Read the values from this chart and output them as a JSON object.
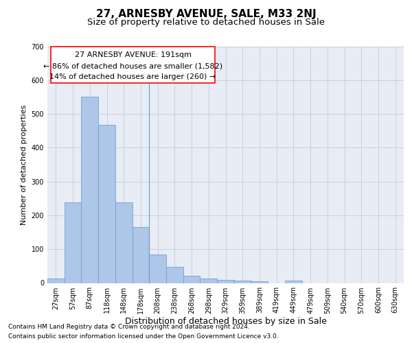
{
  "title": "27, ARNESBY AVENUE, SALE, M33 2NJ",
  "subtitle": "Size of property relative to detached houses in Sale",
  "xlabel": "Distribution of detached houses by size in Sale",
  "ylabel": "Number of detached properties",
  "footnote1": "Contains HM Land Registry data © Crown copyright and database right 2024.",
  "footnote2": "Contains public sector information licensed under the Open Government Licence v3.0.",
  "annotation_title": "27 ARNESBY AVENUE: 191sqm",
  "annotation_line2": "← 86% of detached houses are smaller (1,582)",
  "annotation_line3": "14% of detached houses are larger (260) →",
  "bar_values": [
    13,
    238,
    550,
    468,
    238,
    165,
    85,
    48,
    22,
    13,
    10,
    8,
    5,
    0,
    8,
    0,
    0,
    0,
    0,
    0,
    0
  ],
  "categories": [
    "27sqm",
    "57sqm",
    "87sqm",
    "118sqm",
    "148sqm",
    "178sqm",
    "208sqm",
    "238sqm",
    "268sqm",
    "298sqm",
    "329sqm",
    "359sqm",
    "389sqm",
    "419sqm",
    "449sqm",
    "479sqm",
    "509sqm",
    "540sqm",
    "570sqm",
    "600sqm",
    "630sqm"
  ],
  "bar_color": "#aec6e8",
  "bar_edge_color": "#5b9bd5",
  "vline_x": 5.5,
  "ylim": [
    0,
    700
  ],
  "yticks": [
    0,
    100,
    200,
    300,
    400,
    500,
    600,
    700
  ],
  "grid_color": "#c8d0de",
  "bg_color": "#e8ecf4",
  "title_fontsize": 11,
  "subtitle_fontsize": 9.5,
  "xlabel_fontsize": 9,
  "ylabel_fontsize": 8,
  "tick_fontsize": 7,
  "annotation_fontsize": 8,
  "footnote_fontsize": 6.5
}
